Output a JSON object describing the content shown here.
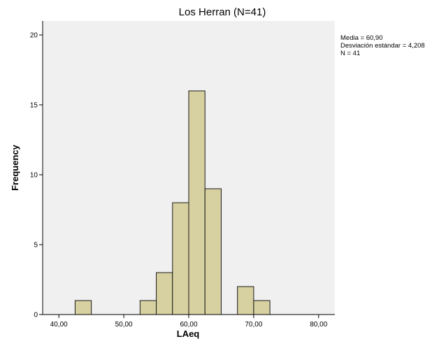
{
  "chart_data": {
    "type": "histogram",
    "title": "Los Herran (N=41)",
    "xlabel": "LAeq",
    "ylabel": "Frequency",
    "xlim": [
      37.5,
      82.5
    ],
    "ylim": [
      0,
      21
    ],
    "x_ticks": [
      40,
      50,
      60,
      70,
      80
    ],
    "x_tick_labels": [
      "40,00",
      "50,00",
      "60,00",
      "70,00",
      "80,00"
    ],
    "y_ticks": [
      0,
      5,
      10,
      15,
      20
    ],
    "y_tick_labels": [
      "0",
      "5",
      "10",
      "15",
      "20"
    ],
    "bins": [
      {
        "x0": 42.5,
        "x1": 45.0,
        "count": 1
      },
      {
        "x0": 52.5,
        "x1": 55.0,
        "count": 1
      },
      {
        "x0": 55.0,
        "x1": 57.5,
        "count": 3
      },
      {
        "x0": 57.5,
        "x1": 60.0,
        "count": 8
      },
      {
        "x0": 60.0,
        "x1": 62.5,
        "count": 16
      },
      {
        "x0": 62.5,
        "x1": 65.0,
        "count": 9
      },
      {
        "x0": 67.5,
        "x1": 70.0,
        "count": 2
      },
      {
        "x0": 70.0,
        "x1": 72.5,
        "count": 1
      }
    ],
    "stats": [
      "Media = 60,90",
      "Desviación estándar = 4,208",
      "N = 41"
    ],
    "grid": false,
    "colors": {
      "bar_fill": "#d7d0a0",
      "bar_stroke": "#1a1a1a",
      "plot_background": "#f0f0f0",
      "axis": "#000000"
    }
  }
}
